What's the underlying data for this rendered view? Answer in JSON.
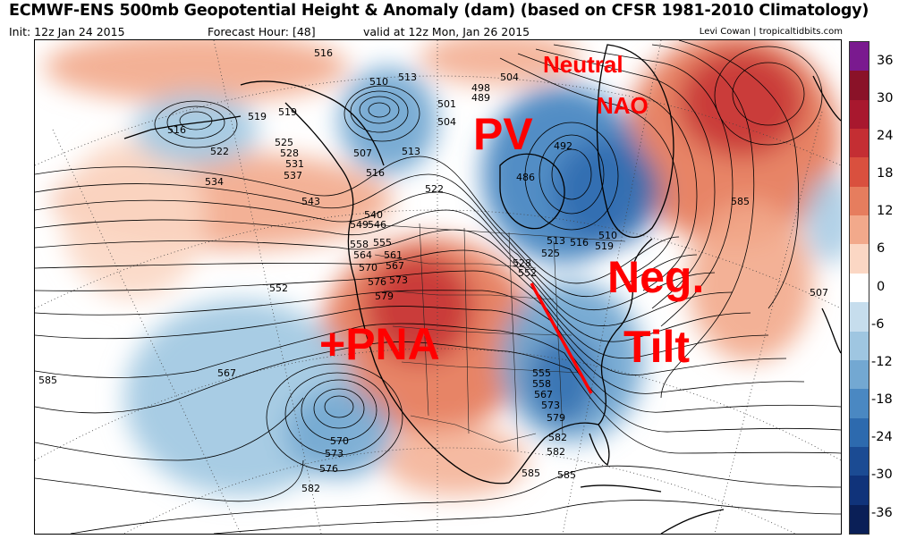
{
  "header": {
    "title": "ECMWF-ENS 500mb Geopotential Height & Anomaly (dam) (based on CFSR 1981-2010 Climatology)",
    "init": "Init: 12z Jan 24 2015",
    "forecast_hour": "Forecast Hour: [48]",
    "valid": "valid at 12z Mon, Jan 26 2015",
    "credit": "Levi Cowan | tropicaltidbits.com"
  },
  "colorbar": {
    "labels": [
      "36",
      "30",
      "24",
      "18",
      "12",
      "6",
      "0",
      "-6",
      "-12",
      "-18",
      "-24",
      "-30",
      "-36"
    ],
    "colors": [
      "#7a1a8f",
      "#8a1228",
      "#a8182e",
      "#c42e33",
      "#d9503e",
      "#e67d5e",
      "#f2a98b",
      "#fbd7c4",
      "#ffffff",
      "#c6dded",
      "#9fc6e1",
      "#73a8d2",
      "#4a88c2",
      "#2d6aae",
      "#1b4b93",
      "#10337a",
      "#0a1f57"
    ]
  },
  "annotations": {
    "pv": "PV",
    "neutral": "Neutral",
    "nao": "NAO",
    "neg": "Neg.",
    "tilt": "Tilt",
    "pna": "+PNA"
  },
  "contour_labels": [
    "516",
    "510",
    "513",
    "504",
    "498",
    "489",
    "501",
    "504",
    "492",
    "519",
    "516",
    "519",
    "522",
    "525",
    "528",
    "531",
    "507",
    "513",
    "516",
    "522",
    "486",
    "534",
    "537",
    "543",
    "540",
    "546",
    "549",
    "558",
    "555",
    "561",
    "564",
    "567",
    "570",
    "573",
    "576",
    "579",
    "552",
    "585",
    "567",
    "570",
    "573",
    "576",
    "582",
    "582",
    "585",
    "507",
    "510",
    "513",
    "516",
    "519",
    "525",
    "528",
    "552",
    "555",
    "558",
    "567",
    "573",
    "579",
    "582",
    "585",
    "585"
  ],
  "icons": [
    "anomaly-shading",
    "contour-lines",
    "coastline",
    "state-borders",
    "lat-lon-grid"
  ]
}
